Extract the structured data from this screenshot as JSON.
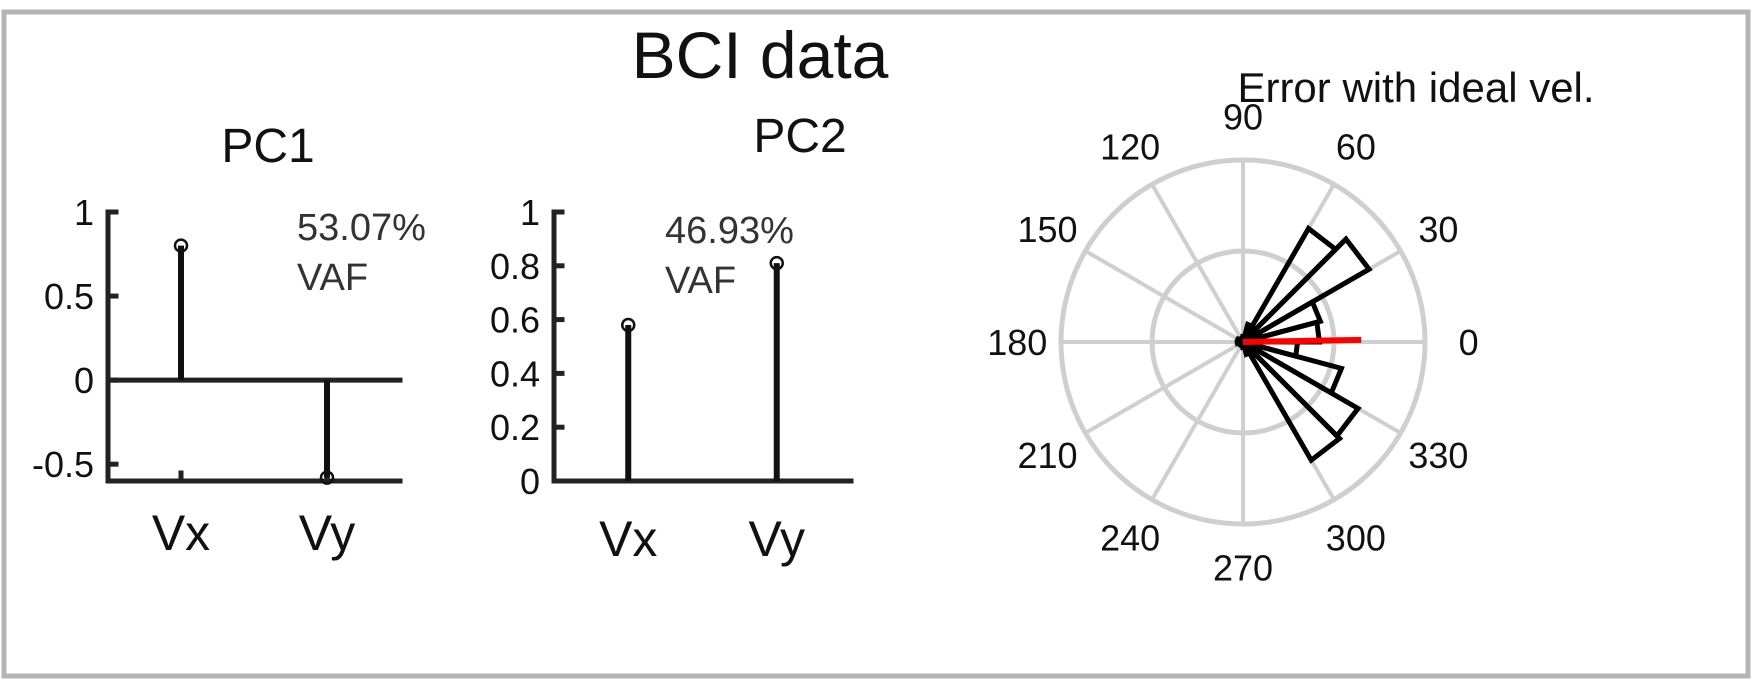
{
  "figure_title": "BCI data",
  "colors": {
    "frame": "#b4b4b4",
    "grid": "#cfcfcf",
    "stem": "#111111",
    "mean_line": "#ff0000"
  },
  "chart_data": [
    {
      "type": "stem",
      "title": "PC1",
      "annotation": [
        "53.07%",
        "VAF"
      ],
      "categories": [
        "Vx",
        "Vy"
      ],
      "values": [
        0.8,
        -0.58
      ],
      "ylim": [
        -0.6,
        1
      ],
      "yticks": [
        1,
        0.5,
        0,
        -0.5
      ],
      "ytick_labels": [
        "1",
        "0.5",
        "0",
        "-0.5"
      ],
      "grid": false
    },
    {
      "type": "stem",
      "title": "PC2",
      "annotation": [
        "46.93%",
        "VAF"
      ],
      "categories": [
        "Vx",
        "Vy"
      ],
      "values": [
        0.58,
        0.81
      ],
      "ylim": [
        0,
        1
      ],
      "yticks": [
        1,
        0.8,
        0.6,
        0.4,
        0.2,
        0
      ],
      "ytick_labels": [
        "1",
        "0.8",
        "0.6",
        "0.4",
        "0.2",
        "0"
      ],
      "grid": false
    },
    {
      "type": "polar-histogram",
      "title": "Error with ideal vel.",
      "theta_ticks_deg": [
        0,
        30,
        60,
        90,
        120,
        150,
        180,
        210,
        240,
        270,
        300,
        330
      ],
      "theta_tick_labels": [
        "0",
        "30",
        "60",
        "90",
        "120",
        "150",
        "180",
        "210",
        "240",
        "270",
        "300",
        "330"
      ],
      "rmax": 1,
      "rings": [
        0.5,
        1
      ],
      "bins": [
        {
          "start": 0,
          "end": 15,
          "value": 0.42
        },
        {
          "start": 15,
          "end": 30,
          "value": 0.44
        },
        {
          "start": 30,
          "end": 45,
          "value": 0.8
        },
        {
          "start": 45,
          "end": 60,
          "value": 0.72
        },
        {
          "start": 60,
          "end": 75,
          "value": 0.1
        },
        {
          "start": 75,
          "end": 90,
          "value": 0.03
        },
        {
          "start": 90,
          "end": 105,
          "value": 0.01
        },
        {
          "start": 105,
          "end": 120,
          "value": 0.01
        },
        {
          "start": 120,
          "end": 135,
          "value": 0.02
        },
        {
          "start": 135,
          "end": 150,
          "value": 0.02
        },
        {
          "start": 150,
          "end": 165,
          "value": 0.03
        },
        {
          "start": 165,
          "end": 180,
          "value": 0.03
        },
        {
          "start": 180,
          "end": 195,
          "value": 0.03
        },
        {
          "start": 195,
          "end": 210,
          "value": 0.02
        },
        {
          "start": 210,
          "end": 225,
          "value": 0.02
        },
        {
          "start": 225,
          "end": 240,
          "value": 0.02
        },
        {
          "start": 240,
          "end": 255,
          "value": 0.01
        },
        {
          "start": 255,
          "end": 270,
          "value": 0.01
        },
        {
          "start": 270,
          "end": 285,
          "value": 0.03
        },
        {
          "start": 285,
          "end": 300,
          "value": 0.07
        },
        {
          "start": 300,
          "end": 315,
          "value": 0.75
        },
        {
          "start": 315,
          "end": 330,
          "value": 0.73
        },
        {
          "start": 330,
          "end": 345,
          "value": 0.56
        },
        {
          "start": 345,
          "end": 360,
          "value": 0.3
        }
      ],
      "mean_direction": {
        "angle_deg": 1,
        "length": 0.65
      }
    }
  ]
}
